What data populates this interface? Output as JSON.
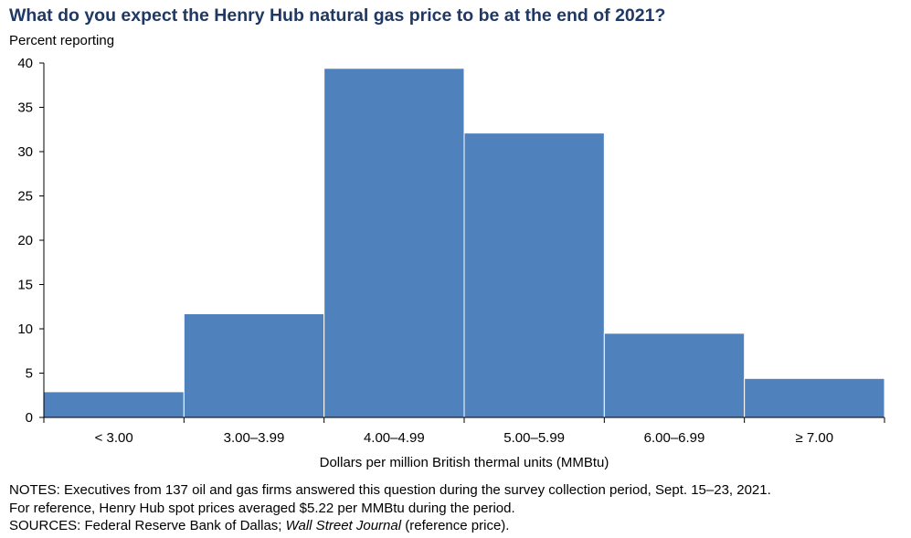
{
  "title": "What do you expect the Henry Hub natural gas price to be at the end of 2021?",
  "subtitle": "Percent reporting",
  "chart_data": {
    "type": "bar",
    "title": "What do you expect the Henry Hub natural gas price to be at the end of 2021?",
    "ylabel": "Percent reporting",
    "xlabel": "Dollars per million British thermal units (MMBtu)",
    "categories": [
      "< 3.00",
      "3.00–3.99",
      "4.00–4.99",
      "5.00–5.99",
      "6.00–6.99",
      "≥ 7.00"
    ],
    "values": [
      2.9,
      11.7,
      39.4,
      32.1,
      9.5,
      4.4
    ],
    "ylim": [
      0,
      40
    ],
    "yticks": [
      0,
      5,
      10,
      15,
      20,
      25,
      30,
      35,
      40
    ],
    "bar_color": "#4f81bd",
    "grid": false,
    "legend": "none"
  },
  "notes": {
    "line1": "NOTES: Executives from 137 oil and gas firms answered this question during the survey collection period, Sept. 15–23, 2021.",
    "line2": "For reference, Henry Hub spot prices averaged $5.22 per MMBtu during the period.",
    "sources_prefix": "SOURCES: Federal Reserve Bank of Dallas; ",
    "sources_italic": "Wall Street Journal",
    "sources_suffix": " (reference price)."
  }
}
